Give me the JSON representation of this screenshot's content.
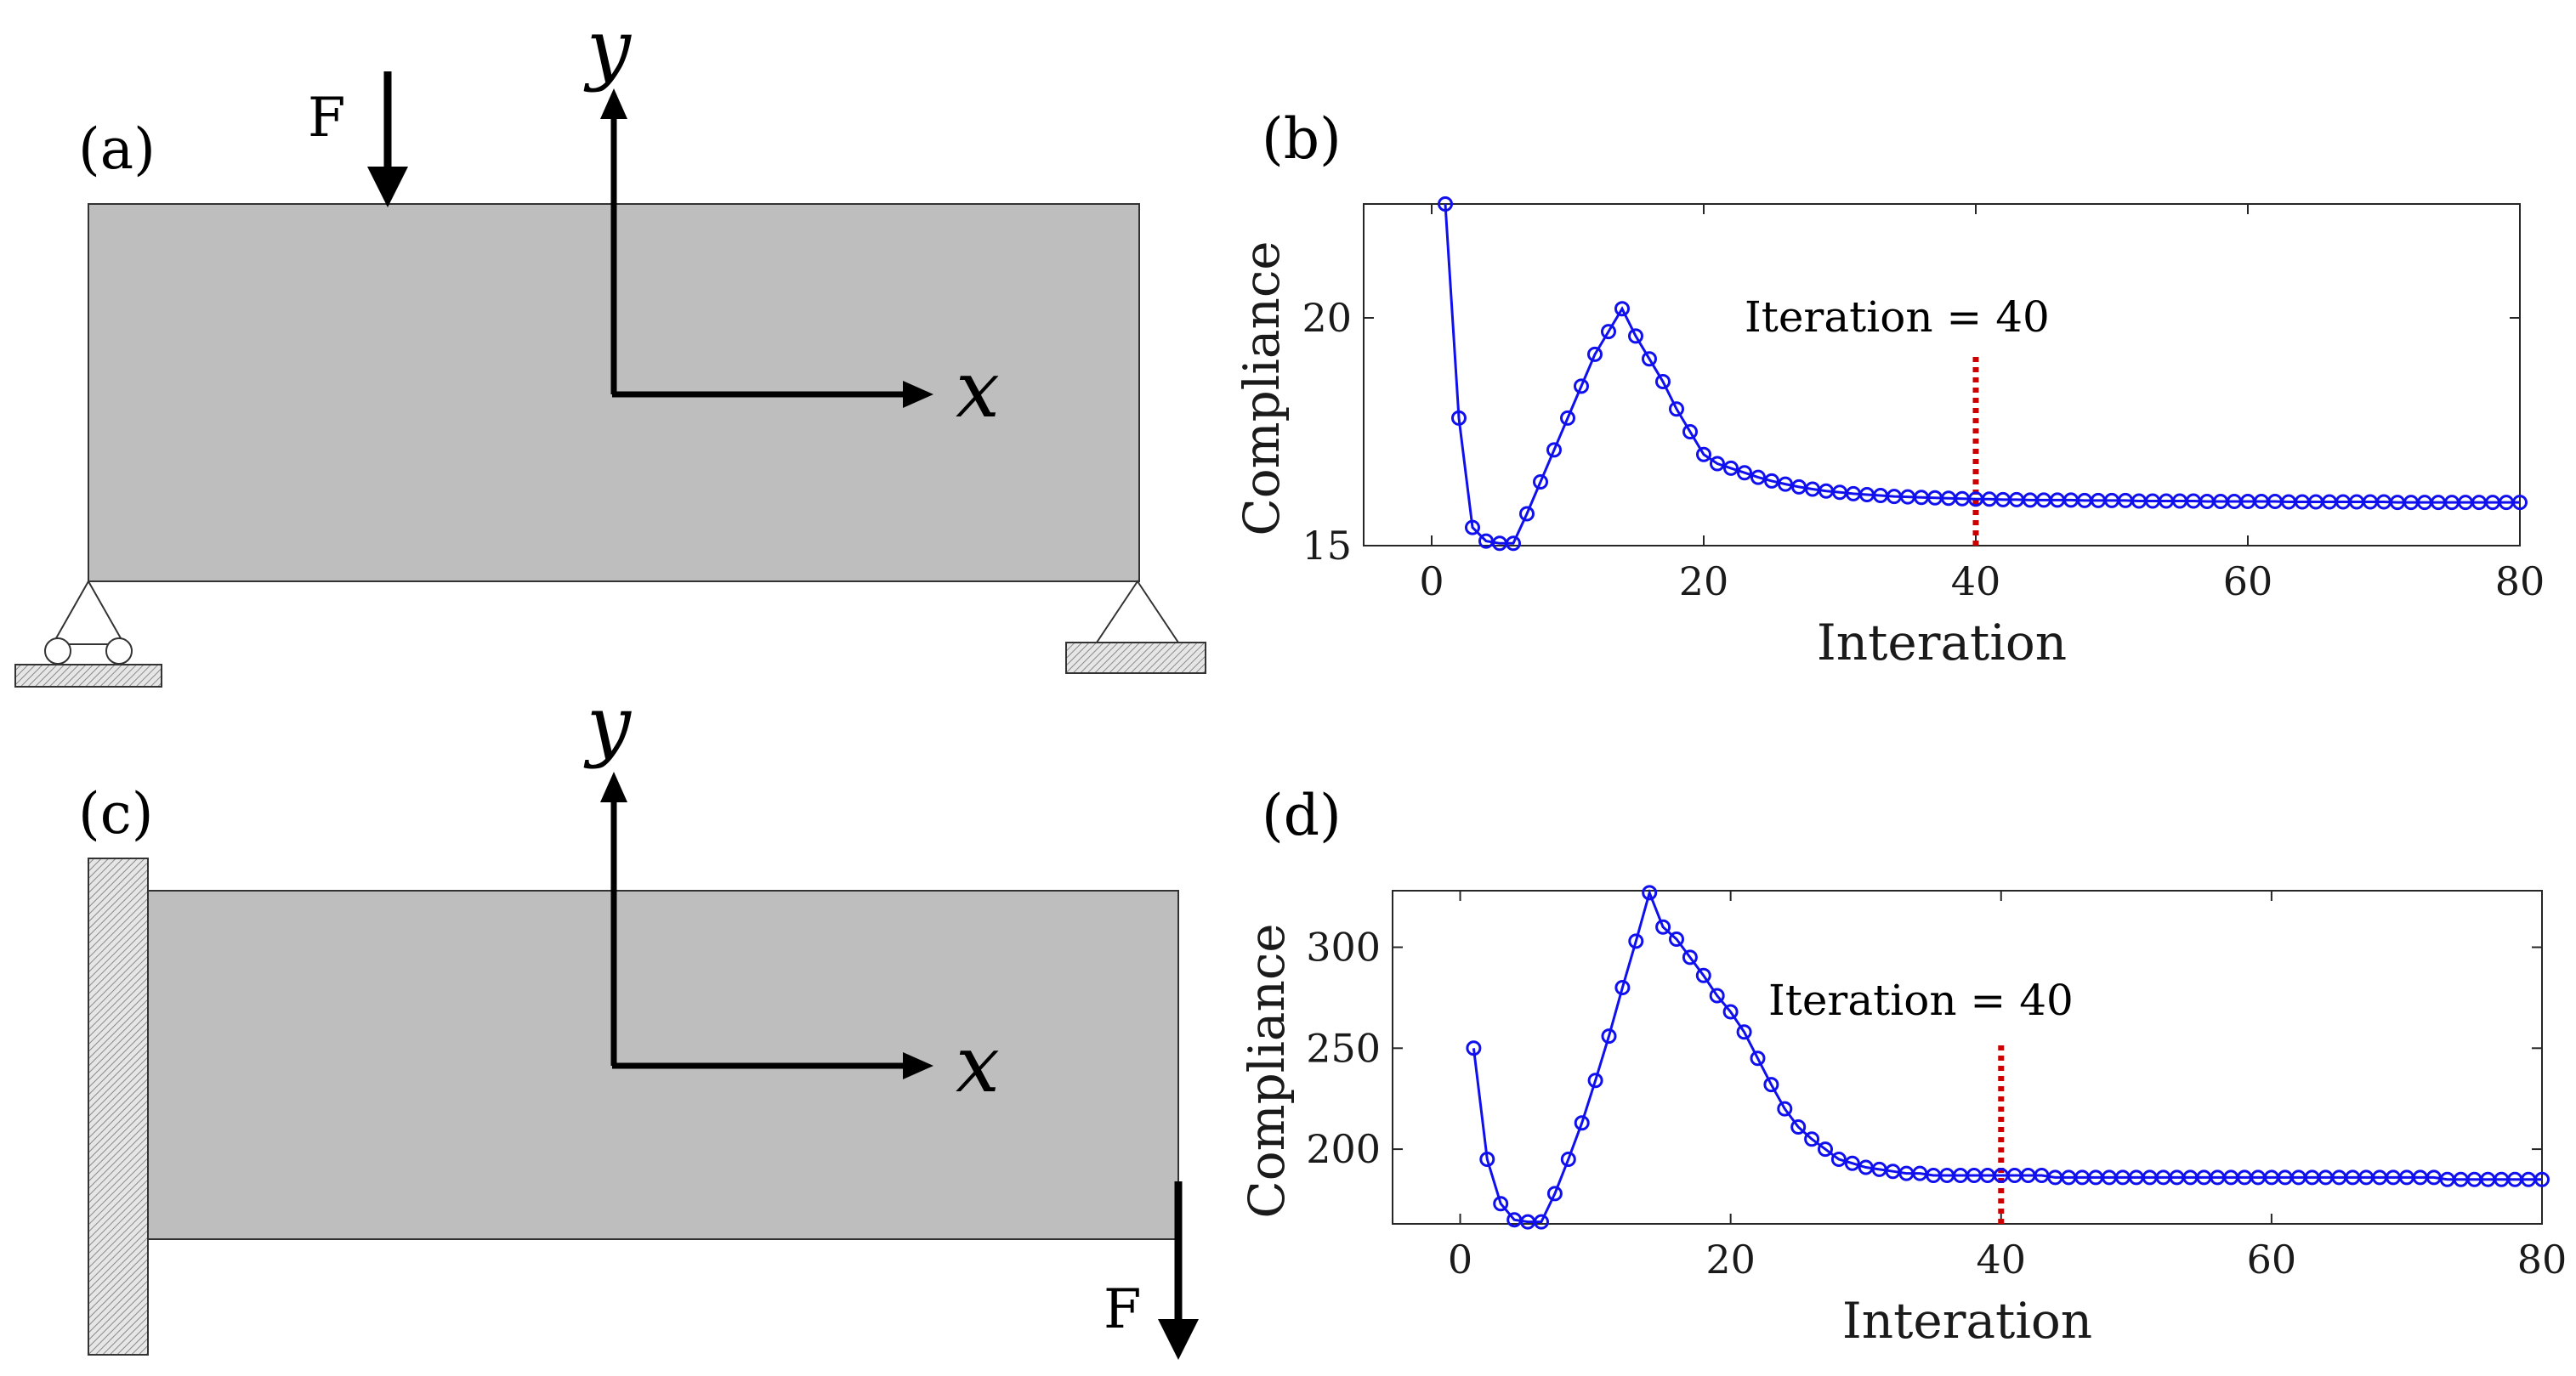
{
  "panels": {
    "a": {
      "label": "(a)",
      "force_label": "F",
      "x_axis_label": "x",
      "y_axis_label": "y"
    },
    "c": {
      "label": "(c)",
      "force_label": "F",
      "x_axis_label": "x",
      "y_axis_label": "y"
    }
  },
  "colors": {
    "beam": "#bebebe",
    "support": "#e0e0e0",
    "series": "#1010ee",
    "marker_line": "#cc0000"
  },
  "chart_data": [
    {
      "panel_label": "(b)",
      "type": "line",
      "xlabel": "Interation",
      "ylabel": "Compliance",
      "xlim": [
        -5,
        80
      ],
      "ylim": [
        15,
        22.5
      ],
      "xticks": [
        0,
        20,
        40,
        60,
        80
      ],
      "yticks": [
        15,
        20
      ],
      "annotation": {
        "text": "Iteration = 40",
        "x": 40
      },
      "series": [
        {
          "name": "compliance",
          "marker": "circle",
          "x": [
            1,
            2,
            3,
            4,
            5,
            6,
            7,
            8,
            9,
            10,
            11,
            12,
            13,
            14,
            15,
            16,
            17,
            18,
            19,
            20,
            21,
            22,
            23,
            24,
            25,
            26,
            27,
            28,
            29,
            30,
            31,
            32,
            33,
            34,
            35,
            36,
            37,
            38,
            39,
            40,
            41,
            42,
            43,
            44,
            45,
            46,
            47,
            48,
            49,
            50,
            51,
            52,
            53,
            54,
            55,
            56,
            57,
            58,
            59,
            60,
            61,
            62,
            63,
            64,
            65,
            66,
            67,
            68,
            69,
            70,
            71,
            72,
            73,
            74,
            75,
            76,
            77,
            78,
            79,
            80
          ],
          "y": [
            22.5,
            17.8,
            15.4,
            15.1,
            15.05,
            15.05,
            15.7,
            16.4,
            17.1,
            17.8,
            18.5,
            19.2,
            19.7,
            20.2,
            19.6,
            19.1,
            18.6,
            18.0,
            17.5,
            17.0,
            16.8,
            16.7,
            16.6,
            16.5,
            16.42,
            16.35,
            16.29,
            16.24,
            16.2,
            16.17,
            16.14,
            16.12,
            16.1,
            16.08,
            16.07,
            16.06,
            16.05,
            16.04,
            16.03,
            16.02,
            16.02,
            16.01,
            16.01,
            16.0,
            16.0,
            16.0,
            16.0,
            15.99,
            15.99,
            15.99,
            15.99,
            15.98,
            15.98,
            15.98,
            15.98,
            15.98,
            15.97,
            15.97,
            15.97,
            15.97,
            15.97,
            15.97,
            15.96,
            15.96,
            15.96,
            15.96,
            15.96,
            15.96,
            15.96,
            15.96,
            15.95,
            15.95,
            15.95,
            15.95,
            15.95,
            15.95,
            15.95,
            15.95,
            15.95,
            15.95
          ]
        }
      ]
    },
    {
      "panel_label": "(d)",
      "type": "line",
      "xlabel": "Interation",
      "ylabel": "Compliance",
      "xlim": [
        -5,
        80
      ],
      "ylim": [
        163,
        328
      ],
      "xticks": [
        0,
        20,
        40,
        60,
        80
      ],
      "yticks": [
        200,
        250,
        300
      ],
      "annotation": {
        "text": "Iteration = 40",
        "x": 40
      },
      "series": [
        {
          "name": "compliance",
          "marker": "circle",
          "x": [
            1,
            2,
            3,
            4,
            5,
            6,
            7,
            8,
            9,
            10,
            11,
            12,
            13,
            14,
            15,
            16,
            17,
            18,
            19,
            20,
            21,
            22,
            23,
            24,
            25,
            26,
            27,
            28,
            29,
            30,
            31,
            32,
            33,
            34,
            35,
            36,
            37,
            38,
            39,
            40,
            41,
            42,
            43,
            44,
            45,
            46,
            47,
            48,
            49,
            50,
            51,
            52,
            53,
            54,
            55,
            56,
            57,
            58,
            59,
            60,
            61,
            62,
            63,
            64,
            65,
            66,
            67,
            68,
            69,
            70,
            71,
            72,
            73,
            74,
            75,
            76,
            77,
            78,
            79,
            80
          ],
          "y": [
            250,
            195,
            173,
            165,
            164,
            164,
            178,
            195,
            213,
            234,
            256,
            280,
            303,
            327,
            310,
            304,
            295,
            286,
            276,
            268,
            258,
            245,
            232,
            220,
            211,
            205,
            200,
            195,
            193,
            191,
            190,
            189,
            188,
            188,
            187,
            187,
            187,
            187,
            187,
            187,
            187,
            187,
            187,
            186,
            186,
            186,
            186,
            186,
            186,
            186,
            186,
            186,
            186,
            186,
            186,
            186,
            186,
            186,
            186,
            186,
            186,
            186,
            186,
            186,
            186,
            186,
            186,
            186,
            186,
            186,
            186,
            186,
            185,
            185,
            185,
            185,
            185,
            185,
            185,
            185
          ]
        }
      ]
    }
  ]
}
